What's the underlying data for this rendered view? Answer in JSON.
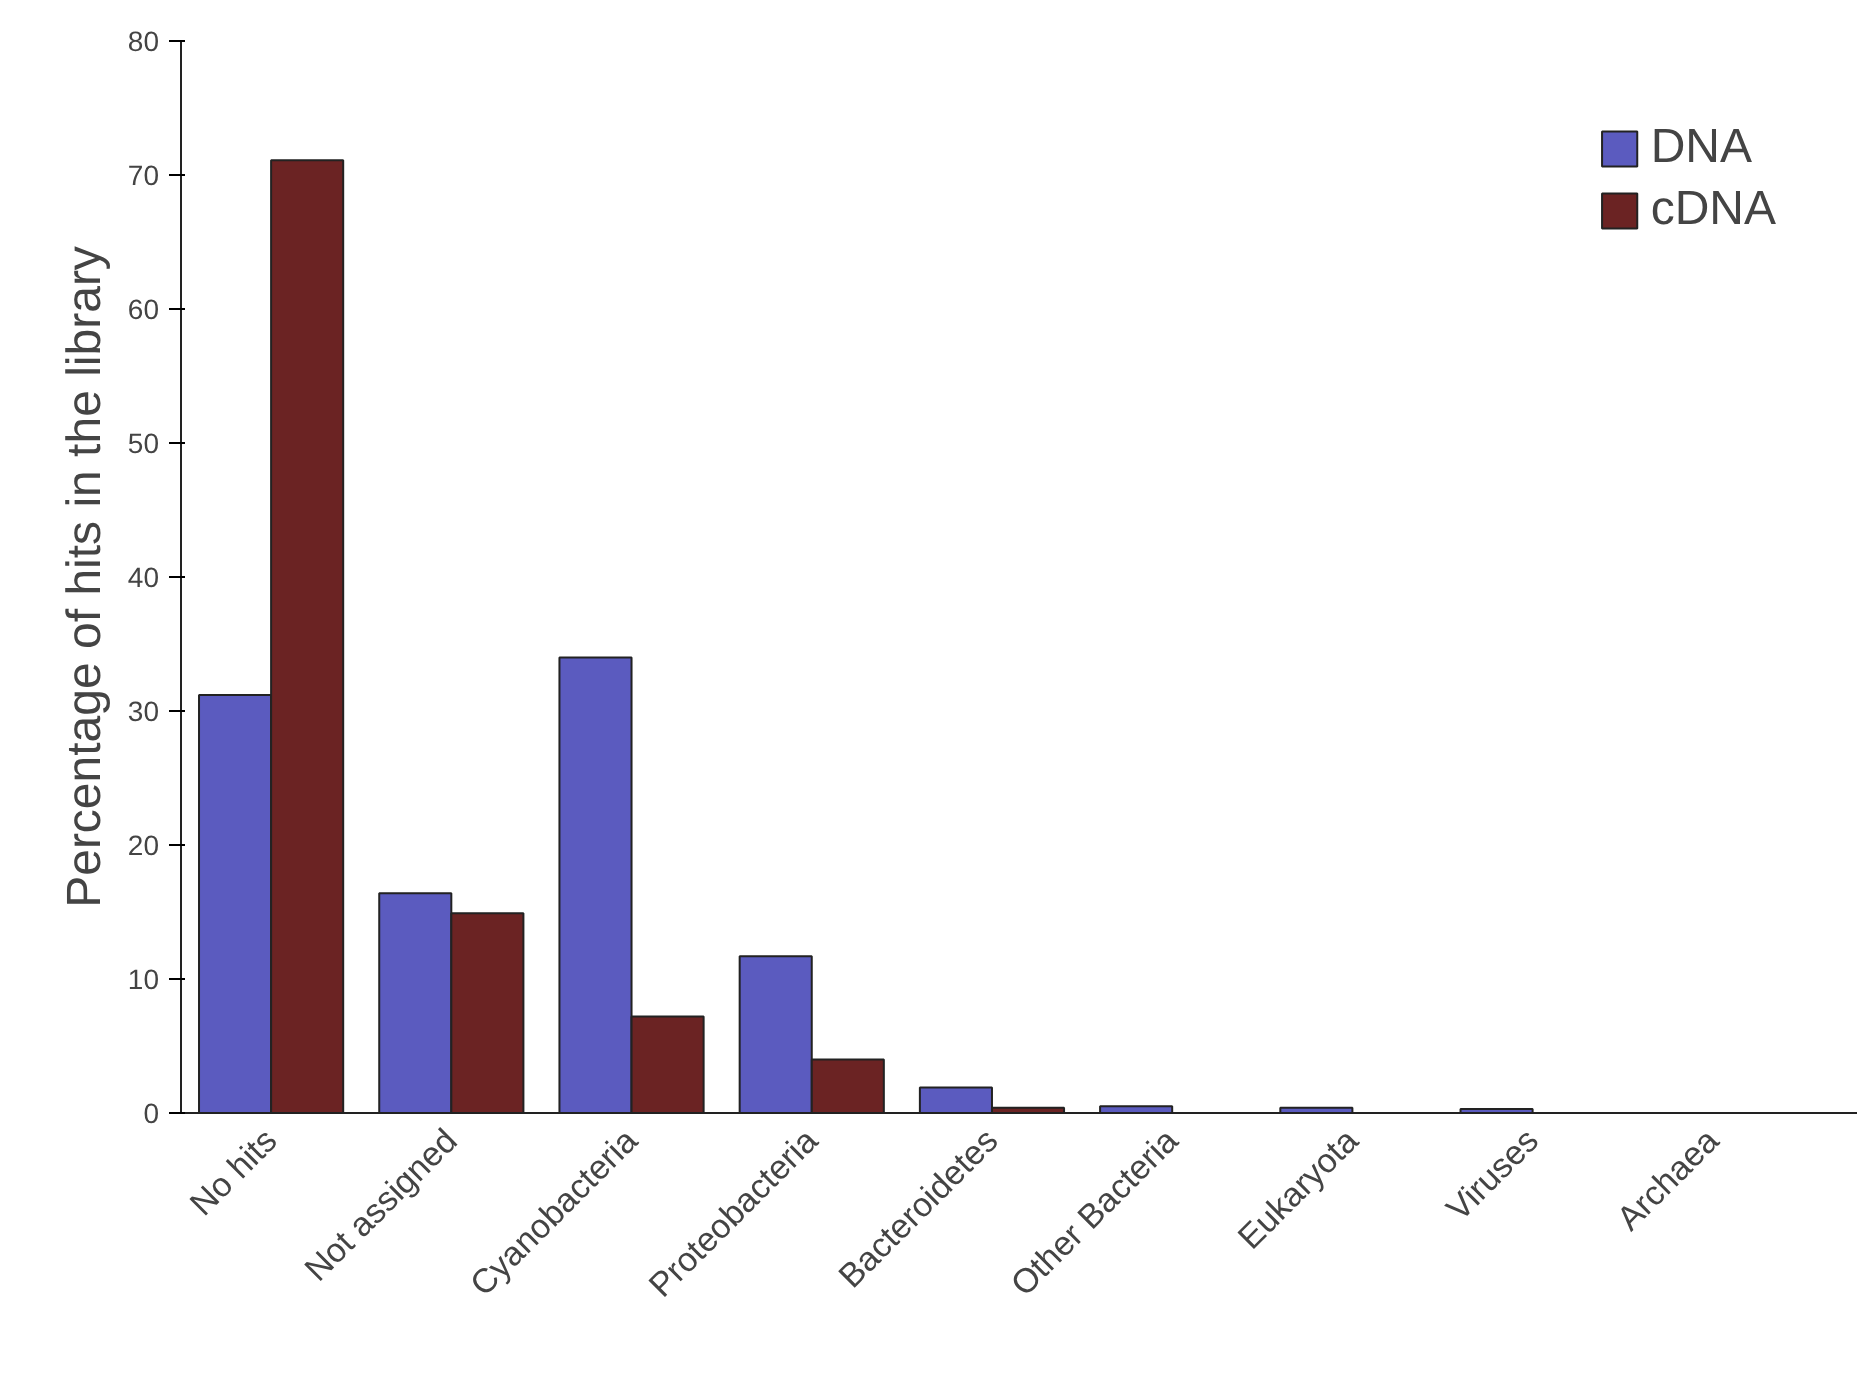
{
  "chart_data": {
    "type": "bar",
    "ylabel": "Percentage of hits in the library",
    "categories": [
      "No hits",
      "Not assigned",
      "Cyanobacteria",
      "Proteobacteria",
      "Bacteroidetes",
      "Other Bacteria",
      "Eukaryota",
      "Viruses",
      "Archaea"
    ],
    "series": [
      {
        "name": "DNA",
        "color": "#5b5bbf",
        "values": [
          31.2,
          16.4,
          34.0,
          11.7,
          1.9,
          0.5,
          0.4,
          0.3,
          0.0
        ]
      },
      {
        "name": "cDNA",
        "color": "#6b2323",
        "values": [
          71.1,
          14.9,
          7.2,
          4.0,
          0.4,
          null,
          null,
          0.0,
          null
        ]
      }
    ],
    "ylim": [
      0,
      80
    ],
    "yticks": [
      0,
      10,
      20,
      30,
      40,
      50,
      60,
      70,
      80
    ],
    "grid": false,
    "legend": "top right"
  }
}
